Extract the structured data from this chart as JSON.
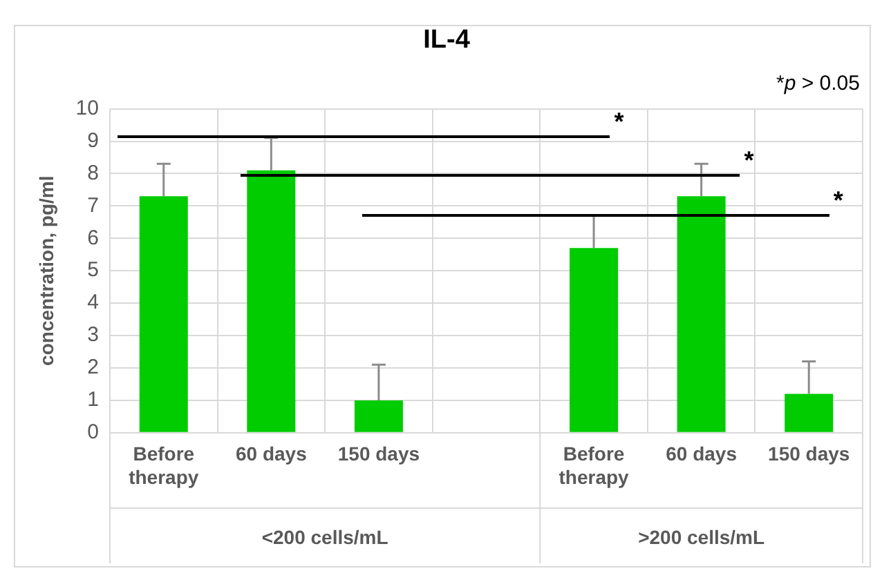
{
  "chart_data": {
    "type": "bar",
    "title": "IL-4",
    "ylabel": "concentration, pg/ml",
    "categories": [
      "Before therapy",
      "60 days",
      "150 days",
      null,
      "Before therapy",
      "60 days",
      "150 days"
    ],
    "values": [
      7.3,
      8.1,
      1.0,
      null,
      5.7,
      7.3,
      1.2
    ],
    "errors": [
      [
        7.3,
        8.3
      ],
      [
        8.1,
        9.1
      ],
      [
        1.0,
        2.1
      ],
      null,
      [
        5.7,
        6.7
      ],
      [
        7.3,
        8.3
      ],
      [
        1.2,
        2.2
      ]
    ],
    "color": "#00cc00",
    "ylim": [
      0,
      10
    ],
    "yticks": [
      0,
      1,
      2,
      3,
      4,
      5,
      6,
      7,
      8,
      9,
      10
    ],
    "grid": true,
    "legend": false,
    "annotations": [
      "*p > 0.05",
      "*",
      "*",
      "*",
      "<200 cells/mL",
      ">200 cells/mL"
    ]
  }
}
